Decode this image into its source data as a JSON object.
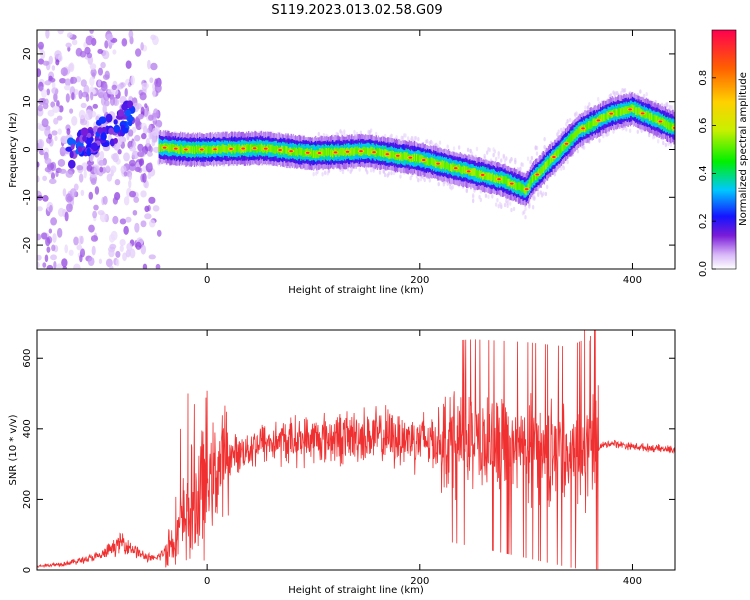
{
  "title": "S119.2023.013.02.58.G09",
  "chart_data": [
    {
      "type": "heatmap",
      "xlabel": "Height of straight line (km)",
      "ylabel": "Frequency (Hz)",
      "xlim": [
        -160,
        440
      ],
      "ylim": [
        -25,
        25
      ],
      "x_ticks": [
        0,
        200,
        400
      ],
      "y_ticks": [
        -20,
        -10,
        0,
        10,
        20
      ],
      "colorbar": {
        "label": "Normalized spectral amplitude",
        "range": [
          0,
          1
        ],
        "ticks": [
          "0.0",
          "0.2",
          "0.4",
          "0.6",
          "0.8"
        ],
        "colors": [
          "#ffffff",
          "#d8b8f8",
          "#7a1cd8",
          "#1414ff",
          "#00c8ff",
          "#00f000",
          "#c8f000",
          "#ffd000",
          "#ff6000",
          "#ff0050"
        ]
      },
      "ridge": {
        "x": [
          -45,
          -20,
          0,
          50,
          100,
          150,
          200,
          250,
          280,
          300,
          305,
          320,
          350,
          380,
          400,
          420,
          440
        ],
        "y": [
          0.5,
          0,
          0,
          0.3,
          -0.8,
          -0.3,
          -2.0,
          -4.8,
          -6.5,
          -8.5,
          -6.5,
          -3,
          4,
          7.5,
          8.5,
          6.5,
          4.5
        ]
      }
    },
    {
      "type": "line",
      "xlabel": "Height of straight line (km)",
      "ylabel": "SNR (10 * v/v)",
      "xlim": [
        -160,
        440
      ],
      "ylim": [
        0,
        680
      ],
      "x_ticks": [
        0,
        200,
        400
      ],
      "y_ticks": [
        0,
        200,
        400,
        600
      ],
      "color": "#f03030",
      "envelope": {
        "x": [
          -160,
          -130,
          -100,
          -80,
          -60,
          -50,
          -40,
          -30,
          -20,
          -10,
          0,
          20,
          50,
          100,
          150,
          200,
          250,
          300,
          340,
          360,
          370,
          380,
          400,
          440
        ],
        "y": [
          10,
          20,
          40,
          80,
          40,
          30,
          50,
          100,
          150,
          200,
          250,
          320,
          360,
          370,
          380,
          370,
          360,
          340,
          320,
          330,
          350,
          360,
          350,
          340
        ]
      },
      "peaks": {
        "x": [
          -25,
          -18,
          -12,
          355,
          360
        ],
        "y": [
          400,
          500,
          470,
          680,
          650
        ]
      }
    }
  ]
}
